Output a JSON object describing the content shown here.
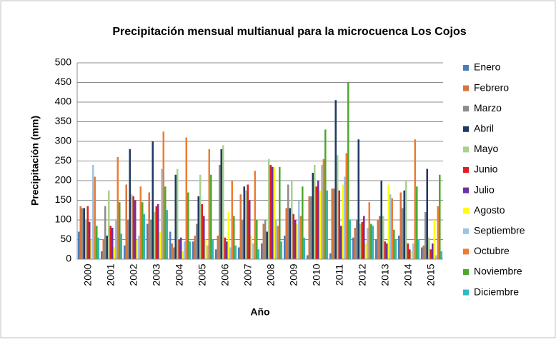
{
  "chart_data": {
    "type": "bar",
    "title": "Precipitación mensual multianual para la microcuenca Los Cojos",
    "x_label": "Año",
    "y_label": "Precipitación  (mm)",
    "categories": [
      "2000",
      "2001",
      "2002",
      "2003",
      "2004",
      "2005",
      "2006",
      "2007",
      "2008",
      "2009",
      "2010",
      "2011",
      "2012",
      "2013",
      "2014",
      "2015"
    ],
    "ylim": [
      0,
      500
    ],
    "yticks": [
      0,
      50,
      100,
      150,
      200,
      250,
      300,
      350,
      400,
      450,
      500
    ],
    "grid": true,
    "legend": "right",
    "series": [
      {
        "name": "Enero",
        "color": "#4a7ebb",
        "values": [
          70,
          20,
          35,
          90,
          70,
          45,
          25,
          30,
          40,
          60,
          10,
          15,
          55,
          50,
          60,
          30
        ]
      },
      {
        "name": "Febrero",
        "color": "#d9743c",
        "values": [
          135,
          50,
          190,
          170,
          40,
          60,
          60,
          165,
          90,
          130,
          160,
          180,
          80,
          100,
          170,
          35
        ]
      },
      {
        "name": "Marzo",
        "color": "#8c8c8c",
        "values": [
          130,
          135,
          100,
          100,
          30,
          90,
          240,
          100,
          100,
          190,
          160,
          180,
          100,
          110,
          130,
          120
        ]
      },
      {
        "name": "Abril",
        "color": "#1f3864",
        "values": [
          130,
          60,
          280,
          300,
          215,
          160,
          280,
          185,
          70,
          130,
          220,
          405,
          305,
          200,
          175,
          230
        ]
      },
      {
        "name": "Mayo",
        "color": "#a9d08e",
        "values": [
          100,
          175,
          165,
          120,
          230,
          215,
          290,
          175,
          255,
          200,
          240,
          265,
          90,
          110,
          200,
          55
        ]
      },
      {
        "name": "Junio",
        "color": "#e02020",
        "values": [
          135,
          85,
          160,
          135,
          50,
          140,
          55,
          190,
          240,
          115,
          185,
          175,
          95,
          45,
          40,
          25
        ]
      },
      {
        "name": "Julio",
        "color": "#7030a0",
        "values": [
          95,
          80,
          150,
          140,
          55,
          110,
          45,
          150,
          235,
          100,
          200,
          85,
          110,
          40,
          25,
          40
        ]
      },
      {
        "name": "Agosto",
        "color": "#ffff00",
        "values": [
          50,
          30,
          50,
          70,
          20,
          50,
          120,
          60,
          235,
          90,
          175,
          190,
          40,
          190,
          20,
          100
        ]
      },
      {
        "name": "Septiembre",
        "color": "#9dc3e6",
        "values": [
          240,
          100,
          60,
          230,
          45,
          35,
          30,
          40,
          100,
          150,
          240,
          210,
          80,
          165,
          40,
          10
        ]
      },
      {
        "name": "Octubre",
        "color": "#ed7d31",
        "values": [
          210,
          260,
          185,
          325,
          310,
          280,
          200,
          225,
          85,
          110,
          255,
          270,
          145,
          155,
          305,
          135
        ]
      },
      {
        "name": "Noviembre",
        "color": "#4ea72e",
        "values": [
          85,
          145,
          145,
          185,
          170,
          215,
          110,
          100,
          235,
          185,
          330,
          450,
          90,
          75,
          185,
          215
        ]
      },
      {
        "name": "Diciembre",
        "color": "#31b7c8",
        "values": [
          55,
          65,
          115,
          125,
          45,
          50,
          35,
          25,
          45,
          55,
          175,
          100,
          85,
          50,
          50,
          20
        ]
      }
    ]
  }
}
